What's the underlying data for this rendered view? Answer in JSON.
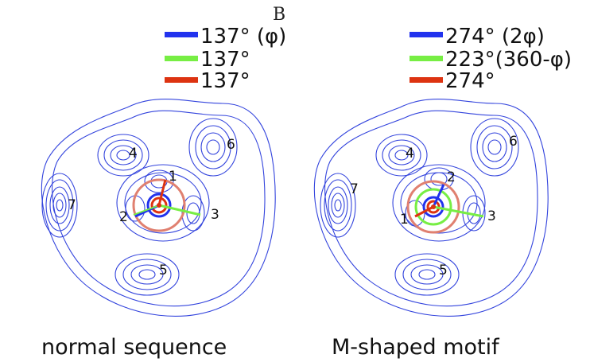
{
  "figure_letter": "B",
  "colors": {
    "contour": "#3344dd",
    "blue": "#2233ee",
    "green": "#77ee44",
    "red": "#dd3311",
    "ring": "#e08070",
    "text": "#111111"
  },
  "panels": [
    {
      "id": "normal",
      "caption": "normal sequence",
      "legend": [
        {
          "color": "blue",
          "label": "137° (φ)"
        },
        {
          "color": "green",
          "label": "137°"
        },
        {
          "color": "red",
          "label": "137°"
        }
      ],
      "labels": [
        "1",
        "2",
        "3",
        "4",
        "5",
        "6",
        "7"
      ]
    },
    {
      "id": "mshaped",
      "caption": "M-shaped motif",
      "legend": [
        {
          "color": "blue",
          "label": "274° (2φ)"
        },
        {
          "color": "green",
          "label": "223°(360-φ)"
        },
        {
          "color": "red",
          "label": "274°"
        }
      ],
      "labels": [
        "2",
        "1",
        "3",
        "4",
        "5",
        "6",
        "7"
      ]
    }
  ]
}
